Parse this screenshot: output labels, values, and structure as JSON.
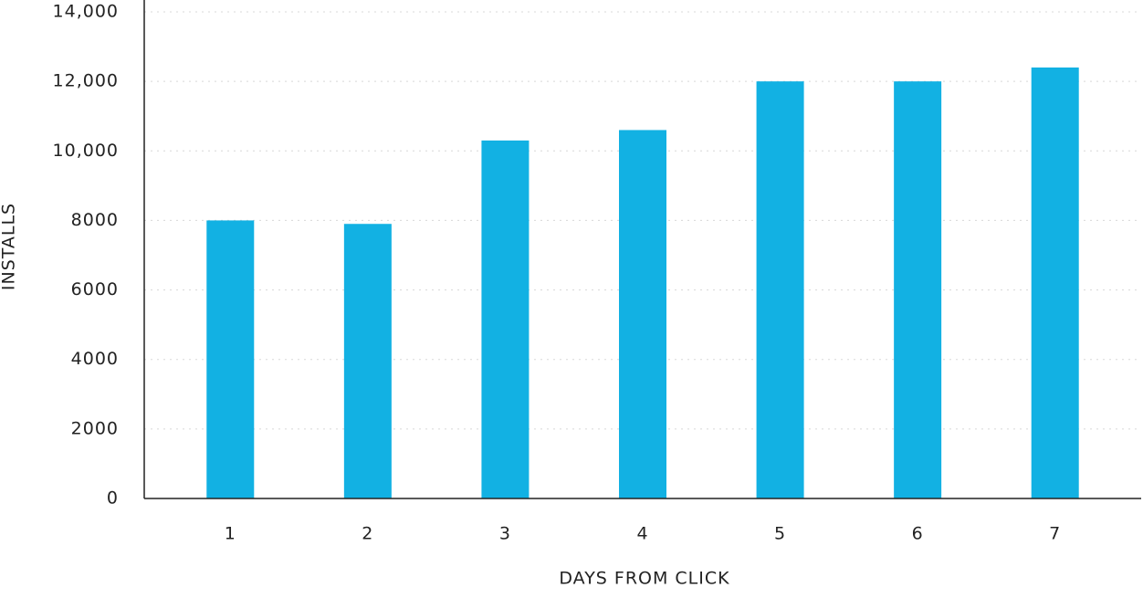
{
  "chart_data": {
    "type": "bar",
    "x_label": "DAYS FROM CLICK",
    "y_label": "INSTALLS",
    "categories": [
      "1",
      "2",
      "3",
      "4",
      "5",
      "6",
      "7"
    ],
    "values": [
      8000,
      7900,
      10300,
      10600,
      12000,
      12000,
      12400
    ],
    "color": "#12b1e3",
    "ylim": [
      0,
      14000
    ],
    "yticks": [
      0,
      2000,
      4000,
      6000,
      8000,
      {
        "value": 10000,
        "label": "10,000"
      },
      {
        "value": 12000,
        "label": "12,000"
      },
      {
        "value": 14000,
        "label": "14,000"
      }
    ],
    "grid": true
  }
}
